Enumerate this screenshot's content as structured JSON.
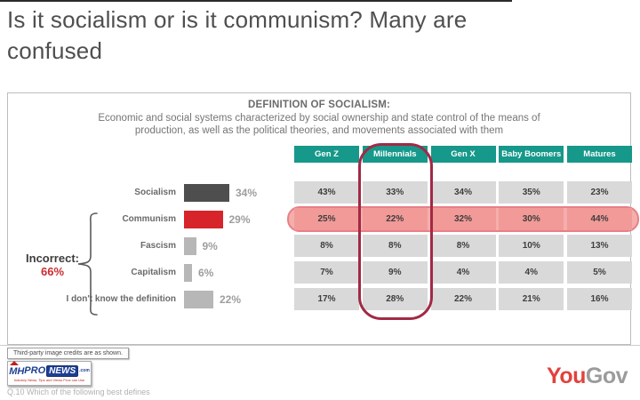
{
  "headline": "Is it socialism or is it communism? Many are confused",
  "colors": {
    "teal_header": "#16988a",
    "dark_bar": "#4e4e4e",
    "red_bar": "#d7232a",
    "grey_bar": "#b7b7b7",
    "pink_row_fill": "#f19a98",
    "pink_row_border": "#e87f87",
    "maroon_circle": "#a12a46",
    "incorrect_red": "#cb2c31",
    "yougov_red": "#e2423d",
    "yougov_grey": "#9b9b9b"
  },
  "panel": {
    "title": "DEFINITION OF SOCIALISM:",
    "description_line1": "Economic and social systems characterized by social ownership and state control of the means of",
    "description_line2": "production, as well as the political theories, and movements associated with them"
  },
  "chart_data": [
    {
      "type": "bar",
      "title": "DEFINITION OF SOCIALISM:",
      "subtitle": "Economic and social systems characterized by social ownership and state control of the means of production, as well as the political theories, and movements associated with them",
      "categories": [
        "Socialism",
        "Communism",
        "Fascism",
        "Capitalism",
        "I don't know the definition"
      ],
      "values": [
        34,
        29,
        9,
        6,
        22
      ],
      "display_values": [
        "34%",
        "29%",
        "9%",
        "6%",
        "22%"
      ],
      "bar_colors": [
        "#4e4e4e",
        "#d7232a",
        "#b7b7b7",
        "#b7b7b7",
        "#b7b7b7"
      ],
      "xlim": [
        0,
        100
      ],
      "annotation": {
        "label": "Incorrect:",
        "value": "66%",
        "applies_to": [
          "Communism",
          "Fascism",
          "Capitalism",
          "I don't know the definition"
        ]
      }
    },
    {
      "type": "table",
      "columns": [
        "Gen Z",
        "Millennials",
        "Gen X",
        "Baby Boomers",
        "Matures"
      ],
      "row_labels": [
        "Socialism",
        "Communism",
        "Fascism",
        "Capitalism",
        "I don't know the definition"
      ],
      "rows": [
        [
          43,
          33,
          34,
          35,
          23
        ],
        [
          25,
          22,
          32,
          30,
          44
        ],
        [
          8,
          8,
          8,
          10,
          13
        ],
        [
          7,
          9,
          4,
          4,
          5
        ],
        [
          17,
          28,
          22,
          21,
          16
        ]
      ],
      "rows_display": [
        [
          "43%",
          "33%",
          "34%",
          "35%",
          "23%"
        ],
        [
          "25%",
          "22%",
          "32%",
          "30%",
          "44%"
        ],
        [
          "8%",
          "8%",
          "8%",
          "10%",
          "13%"
        ],
        [
          "7%",
          "9%",
          "4%",
          "4%",
          "5%"
        ],
        [
          "17%",
          "28%",
          "22%",
          "21%",
          "16%"
        ]
      ],
      "highlighted_row": "Communism",
      "circled_column": "Millennials"
    }
  ],
  "footer": {
    "credits": "Third-party image credits are as shown.",
    "question": "Q.10 Which of the following best defines",
    "mhpronews": {
      "mh": "MH",
      "pro": "PRO",
      "news": "NEWS",
      "com": ".com",
      "tagline": "Industry News, Tips and Views Pros can Use"
    },
    "yougov": {
      "you": "You",
      "gov": "Gov"
    }
  }
}
